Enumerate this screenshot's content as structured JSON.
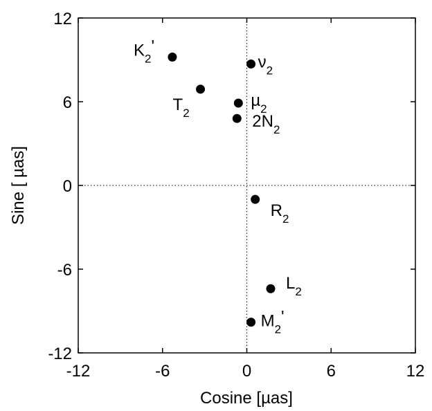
{
  "chart_data": {
    "type": "scatter",
    "xlabel": "Cosine [µas]",
    "ylabel": "Sine [ µas]",
    "xlim": [
      -12,
      12
    ],
    "ylim": [
      -12,
      12
    ],
    "xticks": [
      "-12",
      "-6",
      "0",
      "6",
      "12"
    ],
    "yticks": [
      "12",
      "6",
      "0",
      "-6",
      "-12"
    ],
    "zero_lines": "dotted",
    "grid": false,
    "marker_color": "#000000",
    "points": [
      {
        "base": "K",
        "sub": "2",
        "suffix": "'",
        "x": -5.3,
        "y": 9.2
      },
      {
        "base": "ν",
        "sub": "2",
        "suffix": "",
        "x": 0.3,
        "y": 8.7
      },
      {
        "base": "T",
        "sub": "2",
        "suffix": "",
        "x": -3.3,
        "y": 6.9
      },
      {
        "base": "µ",
        "sub": "2",
        "suffix": "",
        "x": -0.6,
        "y": 5.9
      },
      {
        "base": "2N",
        "sub": "2",
        "suffix": "",
        "x": -0.7,
        "y": 4.8
      },
      {
        "base": "R",
        "sub": "2",
        "suffix": "",
        "x": 0.6,
        "y": -1.0
      },
      {
        "base": "L",
        "sub": "2",
        "suffix": "",
        "x": 1.7,
        "y": -7.4
      },
      {
        "base": "M",
        "sub": "2",
        "suffix": "'",
        "x": 0.3,
        "y": -9.8
      }
    ]
  }
}
